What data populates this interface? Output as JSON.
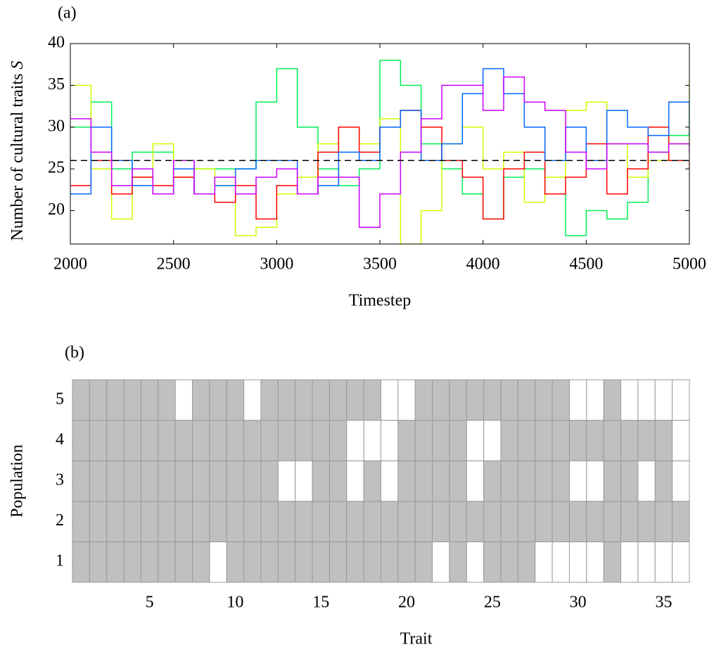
{
  "chart_data": [
    {
      "type": "line",
      "panel_label": "(a)",
      "x_label": "Timestep",
      "y_label": "Number of cultural traits",
      "y_label_symbol": "S",
      "step": true,
      "x": [
        2000,
        2100,
        2200,
        2300,
        2400,
        2500,
        2600,
        2700,
        2800,
        2900,
        3000,
        3100,
        3200,
        3300,
        3400,
        3500,
        3600,
        3700,
        3800,
        3900,
        4000,
        4100,
        4200,
        4300,
        4400,
        4500,
        4600,
        4700,
        4800,
        4900,
        5000
      ],
      "xlim": [
        2000,
        5000
      ],
      "xticks": [
        2000,
        2500,
        3000,
        3500,
        4000,
        4500,
        5000
      ],
      "ylim": [
        16,
        40
      ],
      "yticks": [
        20,
        25,
        30,
        35,
        40
      ],
      "reference_line": 26,
      "series": [
        {
          "color": "#00ee55",
          "values": [
            30,
            33,
            25,
            27,
            27,
            26,
            25,
            25,
            25,
            33,
            37,
            30,
            25,
            23,
            25,
            38,
            35,
            28,
            25,
            22,
            19,
            24,
            25,
            22,
            17,
            20,
            19,
            21,
            27,
            29,
            32
          ]
        },
        {
          "color": "#ccff00",
          "values": [
            35,
            25,
            19,
            24,
            28,
            24,
            25,
            23,
            17,
            18,
            22,
            24,
            28,
            30,
            28,
            31,
            16,
            20,
            28,
            30,
            25,
            27,
            21,
            24,
            32,
            33,
            28,
            24,
            26,
            28,
            36
          ]
        },
        {
          "color": "#ff0000",
          "values": [
            23,
            26,
            22,
            24,
            23,
            24,
            22,
            21,
            23,
            19,
            23,
            22,
            27,
            30,
            27,
            30,
            32,
            30,
            26,
            24,
            19,
            25,
            27,
            22,
            24,
            28,
            22,
            25,
            30,
            26,
            25
          ]
        },
        {
          "color": "#0066ff",
          "values": [
            22,
            30,
            26,
            23,
            22,
            25,
            22,
            23,
            25,
            26,
            26,
            22,
            23,
            27,
            26,
            30,
            32,
            26,
            28,
            34,
            37,
            34,
            30,
            26,
            30,
            26,
            32,
            30,
            29,
            33,
            29
          ]
        },
        {
          "color": "#cc00ff",
          "values": [
            31,
            27,
            23,
            25,
            22,
            26,
            22,
            24,
            22,
            24,
            25,
            22,
            24,
            24,
            18,
            22,
            27,
            31,
            35,
            35,
            32,
            36,
            33,
            32,
            27,
            25,
            28,
            28,
            27,
            28,
            27
          ]
        }
      ]
    },
    {
      "type": "heatmap",
      "panel_label": "(b)",
      "x_label": "Trait",
      "y_label": "Population",
      "xlim": [
        0.5,
        36.5
      ],
      "xticks": [
        5,
        10,
        15,
        20,
        25,
        30,
        35
      ],
      "ylim": [
        0.5,
        5.5
      ],
      "yticks": [
        1,
        2,
        3,
        4,
        5
      ],
      "present_color": "#c0c0c0",
      "absent_color": "#ffffff",
      "rows": [
        [
          1,
          1,
          1,
          1,
          1,
          1,
          1,
          1,
          0,
          1,
          1,
          1,
          1,
          1,
          1,
          1,
          1,
          1,
          1,
          1,
          1,
          0,
          1,
          0,
          1,
          1,
          1,
          0,
          0,
          0,
          0,
          1,
          0,
          0,
          0,
          0
        ],
        [
          1,
          1,
          1,
          1,
          1,
          1,
          1,
          1,
          1,
          1,
          1,
          1,
          1,
          1,
          1,
          1,
          1,
          1,
          1,
          1,
          1,
          1,
          1,
          1,
          1,
          1,
          1,
          1,
          1,
          1,
          1,
          1,
          1,
          1,
          1,
          1
        ],
        [
          1,
          1,
          1,
          1,
          1,
          1,
          1,
          1,
          1,
          1,
          1,
          1,
          0,
          0,
          1,
          1,
          0,
          1,
          0,
          1,
          1,
          1,
          1,
          0,
          1,
          1,
          1,
          1,
          1,
          0,
          0,
          1,
          1,
          0,
          1,
          0
        ],
        [
          1,
          1,
          1,
          1,
          1,
          1,
          1,
          1,
          1,
          1,
          1,
          1,
          1,
          1,
          1,
          1,
          0,
          0,
          0,
          1,
          1,
          1,
          1,
          0,
          0,
          1,
          1,
          1,
          1,
          1,
          1,
          1,
          1,
          1,
          1,
          0
        ],
        [
          1,
          1,
          1,
          1,
          1,
          1,
          0,
          1,
          1,
          1,
          0,
          1,
          1,
          1,
          1,
          1,
          1,
          1,
          0,
          0,
          1,
          1,
          1,
          1,
          1,
          1,
          1,
          1,
          1,
          0,
          0,
          1,
          0,
          0,
          0,
          0
        ]
      ]
    }
  ]
}
